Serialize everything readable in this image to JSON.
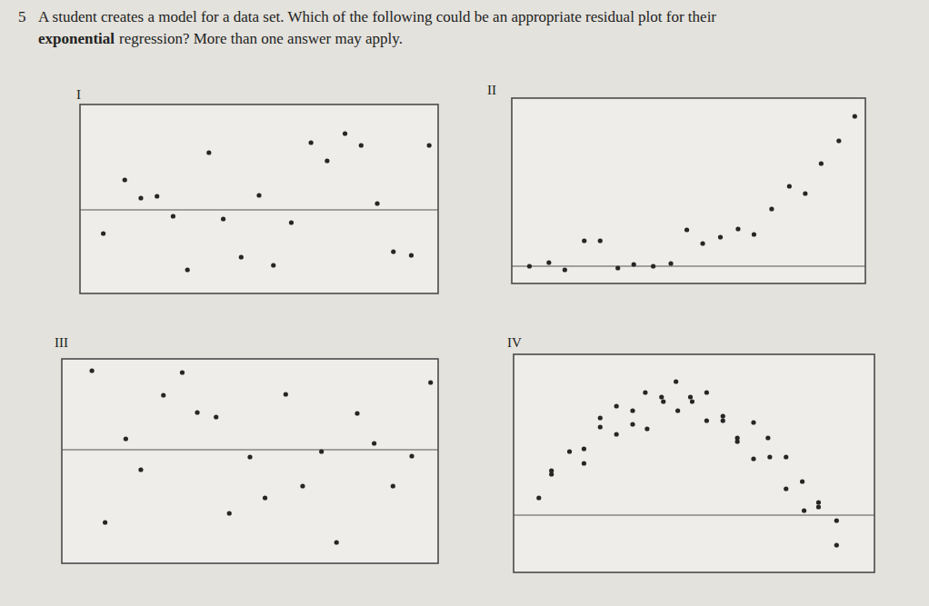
{
  "question": {
    "number": "5",
    "line1": "A student creates a model for a data set.  Which of the following could be an appropriate residual plot for their",
    "line2_bold": "exponential",
    "line2": "regression?  More than one answer may apply."
  },
  "chart_data": [
    {
      "type": "scatter",
      "title": "I",
      "xlim": [
        0,
        20
      ],
      "ylim": [
        -4.6,
        5.8
      ],
      "yticks": [
        0
      ],
      "grid": true,
      "tick_labels": false,
      "color": "#262626",
      "x": [
        1.3,
        2.5,
        3.4,
        4.3,
        5.2,
        6.0,
        7.2,
        8.0,
        9.0,
        10.0,
        10.8,
        11.8,
        12.9,
        13.8,
        14.8,
        15.7,
        16.6,
        17.5,
        18.5,
        19.5
      ],
      "y": [
        -1.3,
        1.65,
        0.65,
        0.75,
        -0.35,
        -3.3,
        3.15,
        -0.5,
        -2.6,
        0.8,
        -3.05,
        -0.7,
        3.7,
        2.7,
        4.2,
        3.55,
        0.35,
        -2.3,
        -2.5,
        3.55
      ]
    },
    {
      "type": "scatter",
      "title": "II",
      "xlim": [
        0,
        20
      ],
      "ylim": [
        -0.95,
        9.25
      ],
      "yticks": [
        0
      ],
      "grid": true,
      "tick_labels": false,
      "color": "#262626",
      "x": [
        1.0,
        2.1,
        3.0,
        4.1,
        5.0,
        6.0,
        6.9,
        8.0,
        9.0,
        9.9,
        10.8,
        11.8,
        12.8,
        13.7,
        14.7,
        15.7,
        16.6,
        17.5,
        18.5,
        19.4
      ],
      "y": [
        0,
        0.2,
        -0.2,
        1.4,
        1.4,
        -0.1,
        0.1,
        0,
        0.15,
        2.0,
        1.25,
        1.6,
        2.05,
        1.75,
        3.15,
        4.4,
        4.0,
        5.65,
        6.9,
        8.25
      ]
    },
    {
      "type": "scatter",
      "title": "III",
      "xlim": [
        0,
        20
      ],
      "ylim": [
        -6.25,
        5
      ],
      "yticks": [
        0
      ],
      "grid": true,
      "tick_labels": false,
      "color": "#262626",
      "x": [
        1.6,
        2.3,
        3.4,
        4.2,
        5.4,
        6.4,
        7.2,
        8.2,
        8.9,
        10.0,
        10.8,
        11.9,
        12.8,
        13.8,
        14.6,
        15.7,
        16.6,
        17.6,
        18.6,
        19.6
      ],
      "y": [
        4.35,
        -4.0,
        0.6,
        -1.1,
        3.0,
        4.25,
        2.05,
        1.8,
        -3.5,
        -0.4,
        -2.65,
        3.05,
        -2.0,
        -0.1,
        -5.1,
        2.0,
        0.35,
        -2.0,
        -0.35,
        3.7
      ]
    },
    {
      "type": "scatter",
      "title": "IV",
      "xlim": [
        0,
        20
      ],
      "ylim": [
        -3.15,
        8.85
      ],
      "yticks": [
        0
      ],
      "grid": true,
      "tick_labels": false,
      "color": "#262626",
      "x": [
        1.4,
        2.1,
        2.1,
        3.1,
        3.9,
        3.9,
        4.8,
        4.8,
        5.7,
        5.7,
        6.6,
        6.6,
        7.3,
        7.4,
        8.2,
        8.3,
        9.1,
        9.0,
        9.8,
        9.9,
        10.7,
        10.7,
        11.6,
        11.6,
        12.4,
        12.4,
        13.3,
        13.3,
        14.1,
        14.2,
        15.1,
        15.1,
        16.0,
        16.1,
        16.9,
        16.9,
        17.9,
        17.9
      ],
      "y": [
        0.95,
        2.25,
        2.45,
        3.5,
        3.65,
        2.85,
        5.35,
        4.85,
        6.0,
        4.45,
        5.75,
        5.0,
        6.75,
        4.75,
        6.5,
        6.25,
        5.75,
        7.35,
        6.5,
        6.25,
        6.75,
        5.2,
        5.45,
        5.2,
        4.25,
        4.05,
        5.1,
        3.1,
        4.25,
        3.2,
        3.2,
        1.45,
        1.85,
        0.25,
        0.7,
        0.45,
        -0.3,
        -1.65
      ]
    }
  ]
}
